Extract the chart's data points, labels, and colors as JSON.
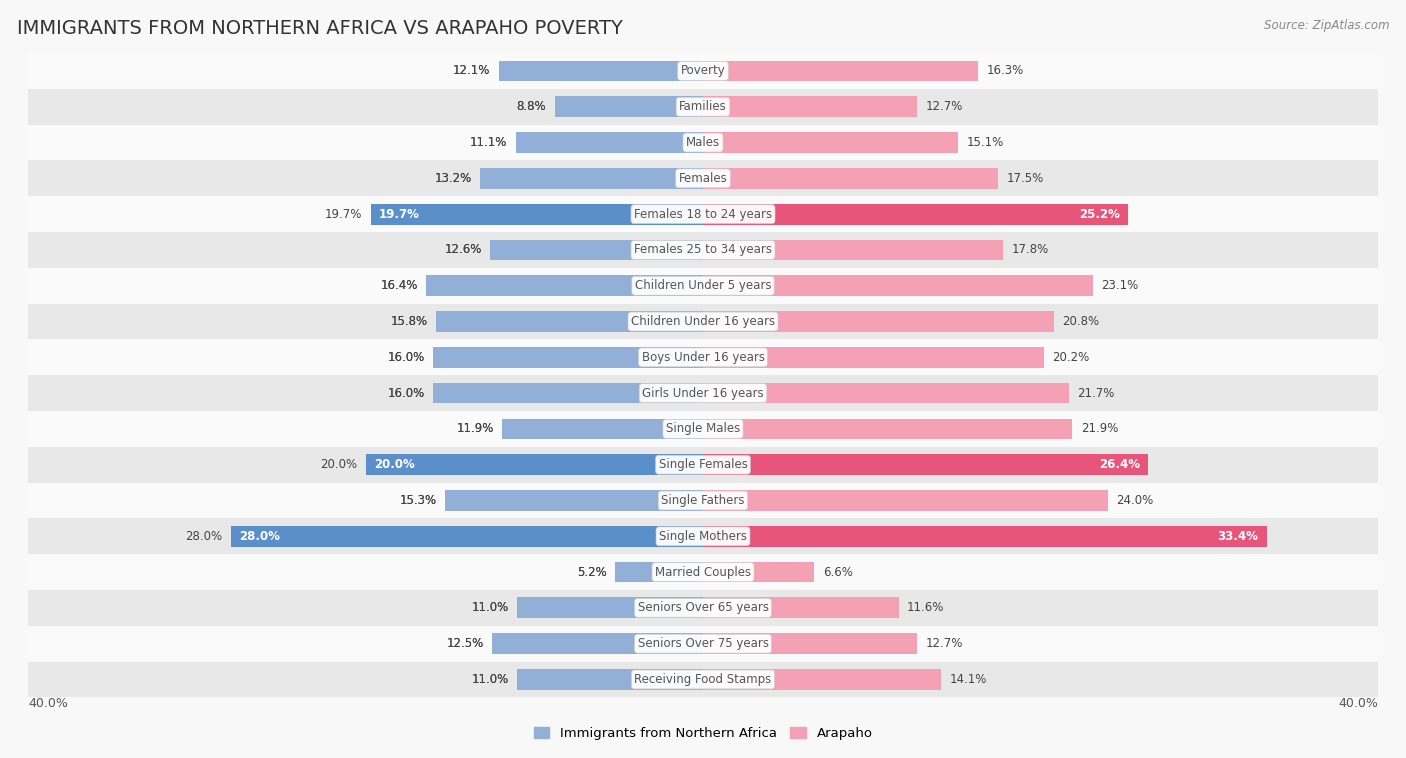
{
  "title": "IMMIGRANTS FROM NORTHERN AFRICA VS ARAPAHO POVERTY",
  "source": "Source: ZipAtlas.com",
  "categories": [
    "Poverty",
    "Families",
    "Males",
    "Females",
    "Females 18 to 24 years",
    "Females 25 to 34 years",
    "Children Under 5 years",
    "Children Under 16 years",
    "Boys Under 16 years",
    "Girls Under 16 years",
    "Single Males",
    "Single Females",
    "Single Fathers",
    "Single Mothers",
    "Married Couples",
    "Seniors Over 65 years",
    "Seniors Over 75 years",
    "Receiving Food Stamps"
  ],
  "left_values": [
    12.1,
    8.8,
    11.1,
    13.2,
    19.7,
    12.6,
    16.4,
    15.8,
    16.0,
    16.0,
    11.9,
    20.0,
    15.3,
    28.0,
    5.2,
    11.0,
    12.5,
    11.0
  ],
  "right_values": [
    16.3,
    12.7,
    15.1,
    17.5,
    25.2,
    17.8,
    23.1,
    20.8,
    20.2,
    21.7,
    21.9,
    26.4,
    24.0,
    33.4,
    6.6,
    11.6,
    12.7,
    14.1
  ],
  "left_color": "#92afd7",
  "right_color": "#f4a0b5",
  "highlight_left_color": "#5b8fc9",
  "highlight_right_color": "#e8557a",
  "highlight_rows": [
    4,
    11,
    13
  ],
  "xlim": 40.0,
  "bar_height": 0.58,
  "background_color": "#f0f0f0",
  "row_light_color": "#fafafa",
  "row_dark_color": "#e8e8e8",
  "legend_label_left": "Immigrants from Northern Africa",
  "legend_label_right": "Arapaho",
  "title_fontsize": 14,
  "label_fontsize": 8.5,
  "value_fontsize": 8.5
}
